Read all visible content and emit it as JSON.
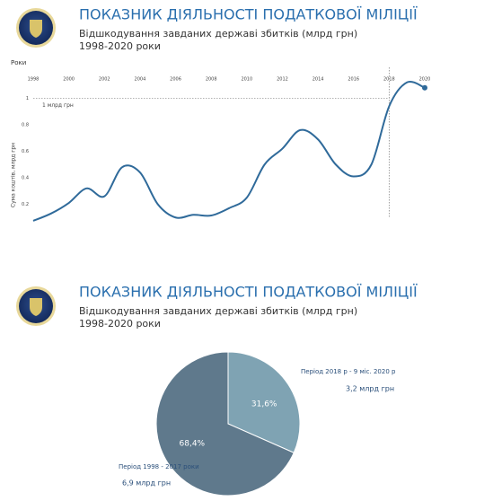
{
  "chart_data": [
    {
      "type": "line",
      "title": "ПОКАЗНИК ДІЯЛЬНОСТІ ПОДАТКОВОЇ МІЛІЦІЇ",
      "subtitle": "Відшкодування завданих державі збитків (млрд грн)",
      "period": "1998-2020 роки",
      "x_label": "Роки",
      "y_label": "Сума коштів, млрд грн",
      "x": [
        1998,
        1999,
        2000,
        2001,
        2002,
        2003,
        2004,
        2005,
        2006,
        2007,
        2008,
        2009,
        2010,
        2011,
        2012,
        2013,
        2014,
        2015,
        2016,
        2017,
        2018,
        2019,
        2020
      ],
      "series": [
        {
          "name": "Сума коштів",
          "color": "#2f6a9a",
          "values": [
            0.075,
            0.13,
            0.21,
            0.32,
            0.26,
            0.48,
            0.44,
            0.2,
            0.1,
            0.12,
            0.115,
            0.17,
            0.25,
            0.5,
            0.62,
            0.76,
            0.69,
            0.5,
            0.41,
            0.5,
            0.94,
            1.12,
            1.08
          ]
        }
      ],
      "xlim": [
        1998,
        2020
      ],
      "xticks": [
        1998,
        2000,
        2002,
        2004,
        2006,
        2008,
        2010,
        2012,
        2014,
        2016,
        2018,
        2020
      ],
      "ylim": [
        0,
        1.2
      ],
      "yticks": [
        0.2,
        0.4,
        0.6,
        0.8,
        1
      ],
      "reference_y": 1,
      "reference_label": "1 млрд грн",
      "reference_x": 2018
    },
    {
      "type": "pie",
      "title": "ПОКАЗНИК ДІЯЛЬНОСТІ ПОДАТКОВОЇ МІЛІЦІЇ",
      "subtitle": "Відшкодування завданих державі збитків (млрд грн)",
      "period": "1998-2020 роки",
      "categories": [
        "Період 2018 р - 9 міс. 2020 р",
        "Період 1998 - 2017 роки"
      ],
      "values": [
        31.6,
        68.4
      ],
      "value_labels": [
        "31,6%",
        "68,4%"
      ],
      "amounts": [
        "3,2 млрд грн",
        "6,9 млрд грн"
      ],
      "colors": [
        "#7fa3b3",
        "#5f798c"
      ]
    }
  ]
}
